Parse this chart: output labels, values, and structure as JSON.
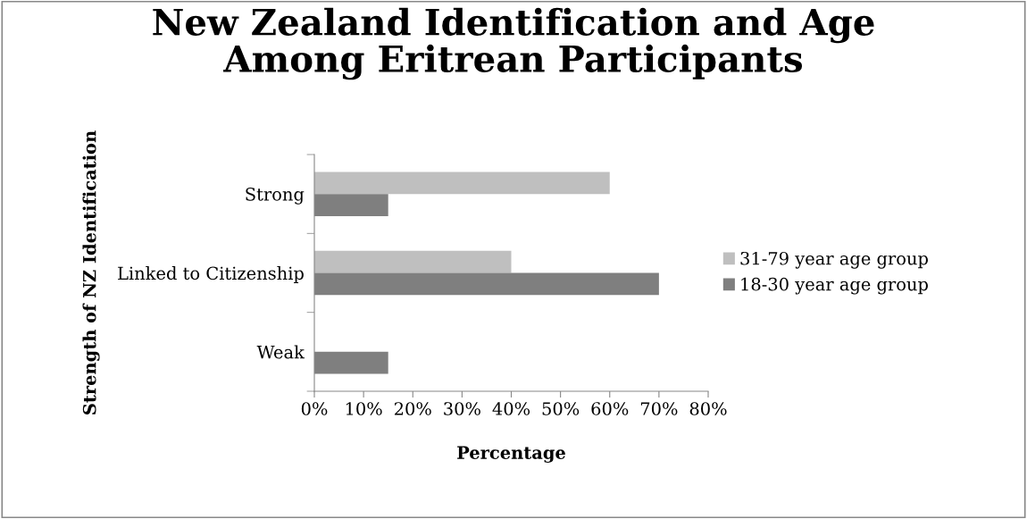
{
  "chart_data": {
    "type": "bar",
    "orientation": "horizontal",
    "title": "New Zealand Identification and Age\nAmong Eritrean Participants",
    "xlabel": "Percentage",
    "ylabel": "Strength of NZ Identification",
    "categories": [
      "Strong",
      "Linked to Citizenship",
      "Weak"
    ],
    "series": [
      {
        "name": "31-79 year age group",
        "color": "#bfbfbf",
        "values": [
          60,
          40,
          0
        ]
      },
      {
        "name": "18-30 year age group",
        "color": "#7f7f7f",
        "values": [
          15,
          70,
          15
        ]
      }
    ],
    "xlim": [
      0,
      80
    ],
    "xticks": [
      {
        "value": 0,
        "label": "0%"
      },
      {
        "value": 10,
        "label": "10%"
      },
      {
        "value": 20,
        "label": "20%"
      },
      {
        "value": 30,
        "label": "30%"
      },
      {
        "value": 40,
        "label": "40%"
      },
      {
        "value": 50,
        "label": "50%"
      },
      {
        "value": 60,
        "label": "60%"
      },
      {
        "value": 70,
        "label": "70%"
      },
      {
        "value": 80,
        "label": "80%"
      }
    ],
    "grid": false,
    "legend": "right"
  }
}
